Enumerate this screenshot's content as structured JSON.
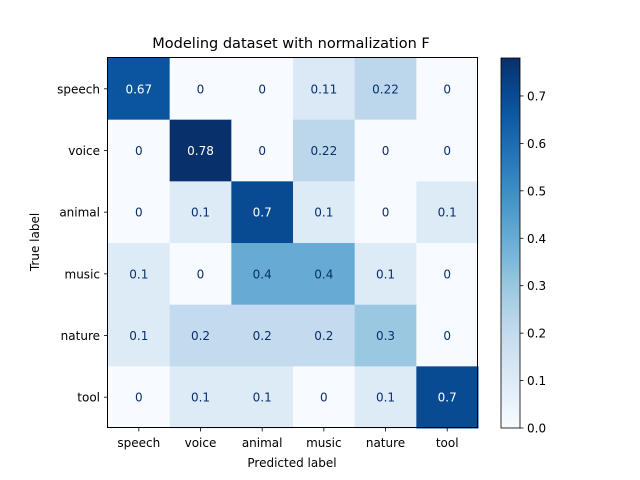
{
  "chart_data": {
    "type": "heatmap",
    "title": "Modeling dataset with normalization F",
    "xlabel": "Predicted label",
    "ylabel": "True label",
    "x_categories": [
      "speech",
      "voice",
      "animal",
      "music",
      "nature",
      "tool"
    ],
    "y_categories": [
      "speech",
      "voice",
      "animal",
      "music",
      "nature",
      "tool"
    ],
    "values": [
      [
        0.67,
        0,
        0,
        0.11,
        0.22,
        0
      ],
      [
        0,
        0.78,
        0,
        0.22,
        0,
        0
      ],
      [
        0,
        0.1,
        0.7,
        0.1,
        0,
        0.1
      ],
      [
        0.1,
        0,
        0.4,
        0.4,
        0.1,
        0
      ],
      [
        0.1,
        0.2,
        0.2,
        0.2,
        0.3,
        0
      ],
      [
        0,
        0.1,
        0.1,
        0,
        0.1,
        0.7
      ]
    ],
    "cell_labels": [
      [
        "0.67",
        "0",
        "0",
        "0.11",
        "0.22",
        "0"
      ],
      [
        "0",
        "0.78",
        "0",
        "0.22",
        "0",
        "0"
      ],
      [
        "0",
        "0.1",
        "0.7",
        "0.1",
        "0",
        "0.1"
      ],
      [
        "0.1",
        "0",
        "0.4",
        "0.4",
        "0.1",
        "0"
      ],
      [
        "0.1",
        "0.2",
        "0.2",
        "0.2",
        "0.3",
        "0"
      ],
      [
        "0",
        "0.1",
        "0.1",
        "0",
        "0.1",
        "0.7"
      ]
    ],
    "colormap": "Blues",
    "colorbar": {
      "range": [
        0.0,
        0.78
      ],
      "ticks": [
        0.0,
        0.1,
        0.2,
        0.3,
        0.4,
        0.5,
        0.6,
        0.7
      ],
      "tick_labels": [
        "0.0",
        "0.1",
        "0.2",
        "0.3",
        "0.4",
        "0.5",
        "0.6",
        "0.7"
      ]
    },
    "grid": false
  }
}
